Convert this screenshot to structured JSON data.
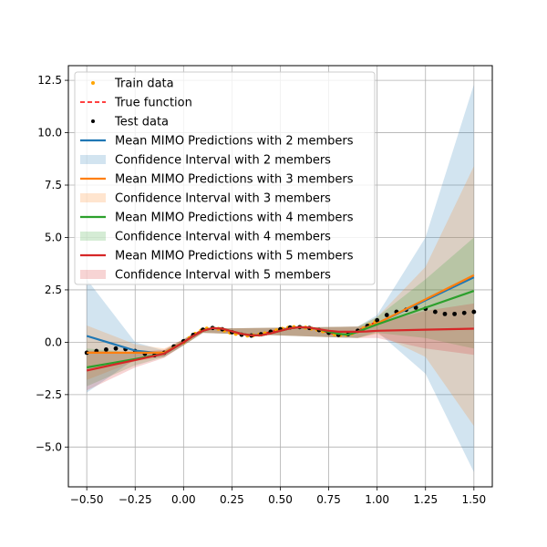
{
  "chart_data": {
    "type": "line",
    "title": "",
    "xlabel": "",
    "ylabel": "",
    "xlim": [
      -0.595,
      1.595
    ],
    "ylim": [
      -6.9,
      13.2
    ],
    "grid": true,
    "legend_position": "top-left",
    "x_ticks": [
      -0.5,
      -0.25,
      0.0,
      0.25,
      0.5,
      0.75,
      1.0,
      1.25,
      1.5
    ],
    "x_tick_labels": [
      "−0.50",
      "−0.25",
      "0.00",
      "0.25",
      "0.50",
      "0.75",
      "1.00",
      "1.25",
      "1.50"
    ],
    "y_ticks": [
      -5.0,
      -2.5,
      0.0,
      2.5,
      5.0,
      7.5,
      10.0,
      12.5
    ],
    "y_tick_labels": [
      "−5.0",
      "−2.5",
      "0.0",
      "2.5",
      "5.0",
      "7.5",
      "10.0",
      "12.5"
    ],
    "legend": [
      {
        "label": "Train data",
        "kind": "dot",
        "color": "#ffa500"
      },
      {
        "label": "True function",
        "kind": "dashed",
        "color": "#ff0000"
      },
      {
        "label": "Test data",
        "kind": "dot",
        "color": "#000000"
      },
      {
        "label": "Mean MIMO Predictions with 2 members",
        "kind": "line",
        "color": "#1f77b4"
      },
      {
        "label": "Confidence Interval with 2 members",
        "kind": "patch",
        "color": "#1f77b4"
      },
      {
        "label": "Mean MIMO Predictions with 3 members",
        "kind": "line",
        "color": "#ff7f0e"
      },
      {
        "label": "Confidence Interval with 3 members",
        "kind": "patch",
        "color": "#ff7f0e"
      },
      {
        "label": "Mean MIMO Predictions with 4 members",
        "kind": "line",
        "color": "#2ca02c"
      },
      {
        "label": "Confidence Interval with 4 members",
        "kind": "patch",
        "color": "#2ca02c"
      },
      {
        "label": "Mean MIMO Predictions with 5 members",
        "kind": "line",
        "color": "#d62728"
      },
      {
        "label": "Confidence Interval with 5 members",
        "kind": "patch",
        "color": "#d62728"
      }
    ],
    "true_function": {
      "x": [
        0.0,
        0.05,
        0.1,
        0.15,
        0.2,
        0.25,
        0.3,
        0.35,
        0.4,
        0.45,
        0.5,
        0.55,
        0.6,
        0.65,
        0.7,
        0.75,
        0.8,
        0.85,
        0.9,
        0.95,
        1.0
      ],
      "y": [
        0.0,
        0.35,
        0.6,
        0.68,
        0.62,
        0.48,
        0.36,
        0.32,
        0.38,
        0.5,
        0.62,
        0.7,
        0.72,
        0.68,
        0.58,
        0.45,
        0.35,
        0.38,
        0.55,
        0.78,
        1.0
      ]
    },
    "test_data": {
      "x": [
        -0.5,
        -0.45,
        -0.4,
        -0.35,
        -0.3,
        -0.25,
        -0.2,
        -0.15,
        -0.1,
        -0.05,
        0.0,
        0.05,
        0.1,
        0.15,
        0.2,
        0.25,
        0.3,
        0.35,
        0.4,
        0.45,
        0.5,
        0.55,
        0.6,
        0.65,
        0.7,
        0.75,
        0.8,
        0.85,
        0.9,
        0.95,
        1.0,
        1.05,
        1.1,
        1.15,
        1.2,
        1.25,
        1.3,
        1.35,
        1.4,
        1.45,
        1.5
      ],
      "y": [
        -0.5,
        -0.42,
        -0.35,
        -0.3,
        -0.33,
        -0.42,
        -0.55,
        -0.62,
        -0.5,
        -0.2,
        0.05,
        0.35,
        0.6,
        0.68,
        0.62,
        0.48,
        0.36,
        0.32,
        0.38,
        0.5,
        0.62,
        0.7,
        0.72,
        0.68,
        0.58,
        0.45,
        0.35,
        0.38,
        0.55,
        0.78,
        1.05,
        1.3,
        1.45,
        1.55,
        1.65,
        1.6,
        1.45,
        1.35,
        1.35,
        1.4,
        1.45
      ]
    },
    "train_data": {
      "x": [
        0.0,
        0.03,
        0.06,
        0.09,
        0.12,
        0.15,
        0.18,
        0.21,
        0.24,
        0.27,
        0.3,
        0.33,
        0.36,
        0.39,
        0.42,
        0.45,
        0.48,
        0.51,
        0.54,
        0.57,
        0.6,
        0.63,
        0.66,
        0.69,
        0.72,
        0.75,
        0.78,
        0.81,
        0.84,
        0.87,
        0.9,
        0.93,
        0.96,
        0.99
      ],
      "y": [
        0.0,
        0.2,
        0.4,
        0.55,
        0.65,
        0.68,
        0.64,
        0.56,
        0.46,
        0.4,
        0.36,
        0.32,
        0.33,
        0.36,
        0.42,
        0.5,
        0.57,
        0.64,
        0.69,
        0.72,
        0.72,
        0.7,
        0.65,
        0.6,
        0.52,
        0.45,
        0.38,
        0.35,
        0.36,
        0.42,
        0.52,
        0.66,
        0.82,
        0.96
      ]
    },
    "series": [
      {
        "name": "Mean MIMO Predictions with 2 members",
        "color": "#1f77b4",
        "x": [
          -0.5,
          -0.25,
          -0.1,
          0.0,
          0.05,
          0.1,
          0.15,
          0.2,
          0.25,
          0.3,
          0.35,
          0.4,
          0.45,
          0.5,
          0.55,
          0.6,
          0.65,
          0.7,
          0.75,
          0.8,
          0.85,
          0.9,
          0.95,
          1.0,
          1.25,
          1.5
        ],
        "y": [
          0.3,
          -0.4,
          -0.55,
          0.0,
          0.3,
          0.55,
          0.68,
          0.65,
          0.52,
          0.4,
          0.33,
          0.33,
          0.42,
          0.55,
          0.66,
          0.72,
          0.7,
          0.62,
          0.5,
          0.4,
          0.36,
          0.5,
          0.72,
          0.9,
          2.0,
          3.1
        ],
        "band_x": [
          -0.5,
          -0.25,
          -0.1,
          0.0,
          0.1,
          0.9,
          1.0,
          1.25,
          1.5
        ],
        "band_lower": [
          -2.4,
          -0.8,
          -0.7,
          -0.15,
          0.45,
          0.2,
          0.5,
          -1.5,
          -6.2
        ],
        "band_upper": [
          3.0,
          0.0,
          -0.4,
          0.15,
          0.65,
          0.75,
          1.3,
          5.0,
          12.3
        ]
      },
      {
        "name": "Mean MIMO Predictions with 3 members",
        "color": "#ff7f0e",
        "x": [
          -0.5,
          -0.25,
          -0.1,
          0.0,
          0.05,
          0.1,
          0.15,
          0.2,
          0.25,
          0.3,
          0.35,
          0.4,
          0.45,
          0.5,
          0.55,
          0.6,
          0.65,
          0.7,
          0.75,
          0.8,
          0.85,
          0.9,
          0.95,
          1.0,
          1.25,
          1.5
        ],
        "y": [
          -0.5,
          -0.5,
          -0.5,
          0.0,
          0.3,
          0.55,
          0.68,
          0.65,
          0.52,
          0.4,
          0.33,
          0.33,
          0.42,
          0.55,
          0.66,
          0.72,
          0.7,
          0.62,
          0.5,
          0.4,
          0.36,
          0.5,
          0.72,
          0.9,
          2.05,
          3.2
        ],
        "band_x": [
          -0.5,
          -0.25,
          -0.1,
          0.0,
          0.1,
          0.9,
          1.0,
          1.25,
          1.5
        ],
        "band_lower": [
          -1.8,
          -0.9,
          -0.7,
          -0.15,
          0.45,
          0.2,
          0.4,
          -0.7,
          -4.0
        ],
        "band_upper": [
          0.8,
          -0.1,
          -0.3,
          0.15,
          0.65,
          0.75,
          1.2,
          3.6,
          8.4
        ]
      },
      {
        "name": "Mean MIMO Predictions with 4 members",
        "color": "#2ca02c",
        "x": [
          -0.5,
          -0.25,
          -0.1,
          0.0,
          0.05,
          0.1,
          0.15,
          0.2,
          0.25,
          0.3,
          0.35,
          0.4,
          0.45,
          0.5,
          0.55,
          0.6,
          0.65,
          0.7,
          0.75,
          0.8,
          0.85,
          0.9,
          0.95,
          1.0,
          1.25,
          1.5
        ],
        "y": [
          -1.2,
          -0.8,
          -0.55,
          0.0,
          0.3,
          0.55,
          0.68,
          0.65,
          0.52,
          0.4,
          0.33,
          0.33,
          0.42,
          0.55,
          0.66,
          0.72,
          0.7,
          0.62,
          0.5,
          0.4,
          0.36,
          0.5,
          0.68,
          0.85,
          1.65,
          2.45
        ],
        "band_x": [
          -0.5,
          -0.25,
          -0.1,
          0.0,
          0.1,
          0.9,
          1.0,
          1.25,
          1.5
        ],
        "band_lower": [
          -2.1,
          -1.1,
          -0.7,
          -0.15,
          0.45,
          0.2,
          0.45,
          0.2,
          -0.3
        ],
        "band_upper": [
          -0.3,
          -0.5,
          -0.4,
          0.15,
          0.65,
          0.75,
          1.2,
          3.0,
          5.0
        ]
      },
      {
        "name": "Mean MIMO Predictions with 5 members",
        "color": "#d62728",
        "x": [
          -0.5,
          -0.25,
          -0.1,
          0.0,
          0.05,
          0.1,
          0.15,
          0.2,
          0.25,
          0.3,
          0.35,
          0.4,
          0.45,
          0.5,
          0.55,
          0.6,
          0.65,
          0.7,
          0.75,
          0.8,
          0.85,
          0.9,
          0.95,
          1.0,
          1.25,
          1.5
        ],
        "y": [
          -1.35,
          -0.85,
          -0.55,
          0.0,
          0.3,
          0.55,
          0.68,
          0.65,
          0.52,
          0.4,
          0.33,
          0.33,
          0.42,
          0.55,
          0.66,
          0.72,
          0.7,
          0.62,
          0.55,
          0.5,
          0.5,
          0.5,
          0.52,
          0.55,
          0.6,
          0.65
        ],
        "band_x": [
          -0.5,
          -0.25,
          -0.1,
          0.0,
          0.1,
          0.9,
          1.0,
          1.25,
          1.5
        ],
        "band_lower": [
          -2.3,
          -1.2,
          -0.75,
          -0.15,
          0.45,
          0.2,
          0.2,
          -0.3,
          -0.6
        ],
        "band_upper": [
          -0.4,
          -0.5,
          -0.35,
          0.15,
          0.65,
          0.75,
          0.9,
          1.5,
          1.85
        ]
      }
    ]
  }
}
